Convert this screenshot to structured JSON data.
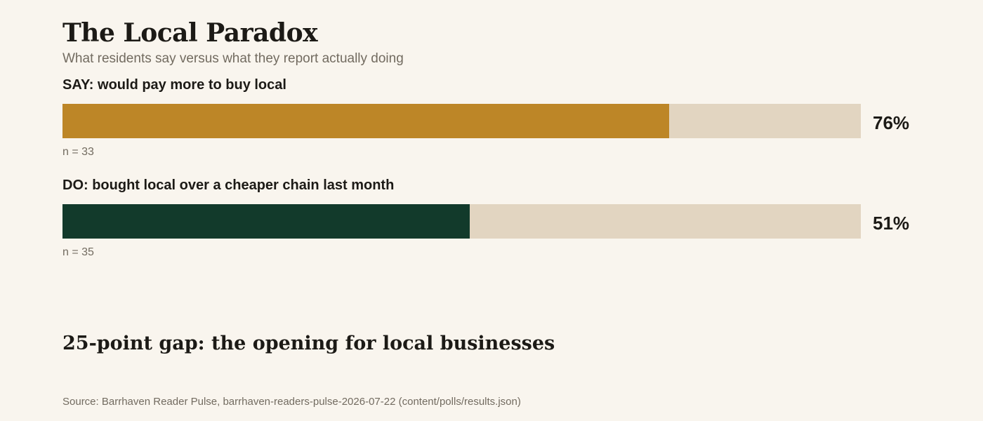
{
  "chart_data": {
    "type": "bar",
    "title": "The Local Paradox",
    "subtitle": "What residents say versus what they report actually doing",
    "categories": [
      "SAY: would pay more to buy local",
      "DO: bought local over a cheaper chain last month"
    ],
    "values": [
      76,
      51
    ],
    "value_labels": [
      "76%",
      "51%"
    ],
    "sample_sizes": [
      "n = 33",
      "n = 35"
    ],
    "xlim": [
      0,
      100
    ],
    "orientation": "horizontal",
    "grid": false,
    "colors": [
      "#bd8627",
      "#123a2b"
    ],
    "track_color": "#e2d5c1",
    "annotation": "25-point gap: the opening for local businesses",
    "source": "Source: Barrhaven Reader Pulse, barrhaven-readers-pulse-2026-07-22 (content/polls/results.json)"
  }
}
